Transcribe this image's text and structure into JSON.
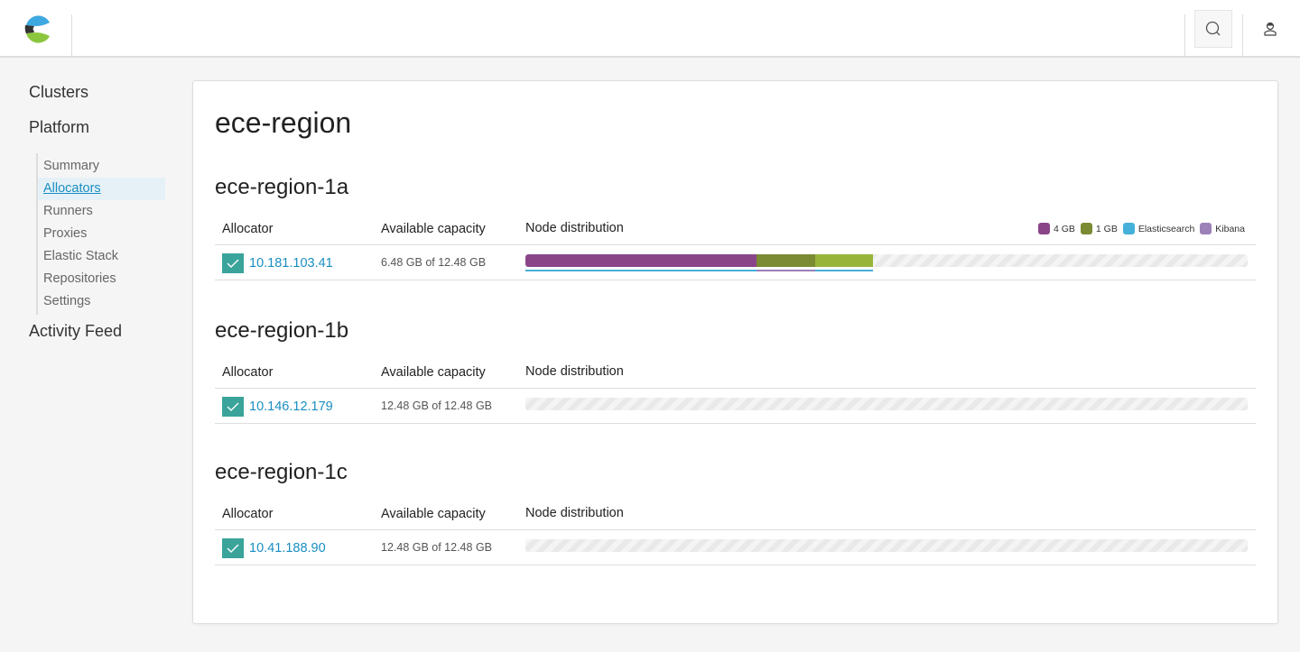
{
  "header": {
    "logo": "elastic-cloud-enterprise-logo",
    "search_icon": "search-icon",
    "user_icon": "user-icon"
  },
  "sidebar": {
    "items": [
      {
        "label": "Clusters"
      },
      {
        "label": "Platform"
      },
      {
        "label": "Activity Feed"
      }
    ],
    "platform_sub": [
      {
        "label": "Summary"
      },
      {
        "label": "Allocators",
        "active": true
      },
      {
        "label": "Runners"
      },
      {
        "label": "Proxies"
      },
      {
        "label": "Elastic Stack"
      },
      {
        "label": "Repositories"
      },
      {
        "label": "Settings"
      }
    ]
  },
  "main": {
    "title": "ece-region",
    "columns": {
      "allocator": "Allocator",
      "capacity": "Available capacity",
      "distribution": "Node distribution"
    },
    "legend": [
      {
        "label": "4 GB",
        "color": "#8a4589"
      },
      {
        "label": "1 GB",
        "color": "#7a8b33"
      },
      {
        "label": "Elasticsearch",
        "color": "#45b0d9"
      },
      {
        "label": "Kibana",
        "color": "#9c80b8"
      }
    ],
    "regions": [
      {
        "name": "ece-region-1a",
        "allocator": {
          "ip": "10.181.103.41",
          "capacity": "6.48 GB of 12.48 GB",
          "status": "healthy",
          "nodes": [
            {
              "size_gb": 4,
              "color": "#8a4589",
              "type": "Elasticsearch"
            },
            {
              "size_gb": 1,
              "color": "#7a8b33",
              "type": "Kibana"
            },
            {
              "size_gb": 1,
              "color": "#99b539",
              "type": "Elasticsearch"
            }
          ],
          "total_gb": 12.48
        }
      },
      {
        "name": "ece-region-1b",
        "allocator": {
          "ip": "10.146.12.179",
          "capacity": "12.48 GB of 12.48 GB",
          "status": "healthy",
          "nodes": [],
          "total_gb": 12.48
        }
      },
      {
        "name": "ece-region-1c",
        "allocator": {
          "ip": "10.41.188.90",
          "capacity": "12.48 GB of 12.48 GB",
          "status": "healthy",
          "nodes": [],
          "total_gb": 12.48
        }
      }
    ]
  },
  "type_colors": {
    "Elasticsearch": "#45b0d9",
    "Kibana": "#9c80b8"
  }
}
